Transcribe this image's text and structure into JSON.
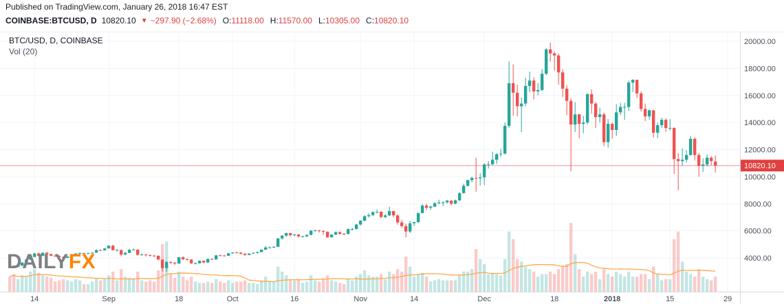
{
  "header": {
    "published": "Published on TradingView.com, January 26, 2018 16:47 EST",
    "symbol": "COINBASE:BTCUSD, D",
    "last_price": "10820.10",
    "down_triangle": "▼",
    "change": "−297.90 (−2.68%)",
    "ohlc": [
      {
        "label": "O:",
        "value": "11118.00"
      },
      {
        "label": "H:",
        "value": "11570.00"
      },
      {
        "label": "L:",
        "value": "10305.00"
      },
      {
        "label": "C:",
        "value": "10820.10"
      }
    ]
  },
  "legend": {
    "line1": "BTC/USD, D, COINBASE",
    "line2": "Vol (20)"
  },
  "logo": {
    "part1": "DAILY",
    "part2": "FX"
  },
  "colors": {
    "up": "#26a69a",
    "down": "#ef5350",
    "vol_up": "rgba(38,166,154,0.28)",
    "vol_down": "rgba(239,83,80,0.30)",
    "ma_line": "#ffa23e",
    "price_line": "#e0403f",
    "accent_red": "#e0403f",
    "logo_gray": "#7d8084",
    "logo_orange": "#ff8300",
    "grid": "#f0f3fa",
    "axis_text": "#4a4f59"
  },
  "chart_data": {
    "type": "candlestick",
    "title": "BTC/USD, D, COINBASE",
    "indicator": "Vol (20)",
    "symbol": "COINBASE:BTCUSD",
    "interval": "D",
    "start_date": "2017-08-08",
    "end_date": "2018-01-26",
    "last_price": 10820.1,
    "last_price_label": "10820.10",
    "volume_ma_period": 20,
    "y_ticks": [
      {
        "value": 20000,
        "label": "20000.00"
      },
      {
        "value": 18000,
        "label": "18000.00"
      },
      {
        "value": 16000,
        "label": "16000.00"
      },
      {
        "value": 14000,
        "label": "14000.00"
      },
      {
        "value": 12000,
        "label": "12000.00"
      },
      {
        "value": 10000,
        "label": "10000.00"
      },
      {
        "value": 8000,
        "label": "8000.00"
      },
      {
        "value": 6000,
        "label": "6000.00"
      },
      {
        "value": 4000,
        "label": "4000.00"
      }
    ],
    "x_ticks": [
      {
        "index": 6,
        "label": "14"
      },
      {
        "index": 24,
        "label": "Sep"
      },
      {
        "index": 41,
        "label": "18"
      },
      {
        "index": 54,
        "label": "Oct"
      },
      {
        "index": 69,
        "label": "16"
      },
      {
        "index": 85,
        "label": "Nov"
      },
      {
        "index": 98,
        "label": "14"
      },
      {
        "index": 115,
        "label": "Dec"
      },
      {
        "index": 132,
        "label": "18"
      },
      {
        "index": 146,
        "label": "2018",
        "bold": true
      },
      {
        "index": 160,
        "label": "15"
      },
      {
        "index": 174,
        "label": "29"
      }
    ],
    "candles": [
      [
        3450,
        3480,
        3340,
        3430,
        12
      ],
      [
        3430,
        3450,
        3250,
        3340,
        14
      ],
      [
        3340,
        3460,
        3300,
        3430,
        10
      ],
      [
        3430,
        3700,
        3400,
        3650,
        13
      ],
      [
        3650,
        3920,
        3640,
        3880,
        12
      ],
      [
        3880,
        4150,
        3850,
        4070,
        16
      ],
      [
        4070,
        4370,
        4060,
        4330,
        18
      ],
      [
        4330,
        4420,
        4100,
        4160,
        15
      ],
      [
        4160,
        4420,
        4110,
        4380,
        13
      ],
      [
        4380,
        4450,
        4200,
        4280,
        12
      ],
      [
        4280,
        4320,
        4110,
        4160,
        11
      ],
      [
        4160,
        4210,
        4080,
        4150,
        8
      ],
      [
        4150,
        4190,
        4010,
        4070,
        9
      ],
      [
        4070,
        4110,
        3970,
        4000,
        10
      ],
      [
        4000,
        4150,
        3980,
        4100,
        9
      ],
      [
        4100,
        4180,
        4050,
        4140,
        8
      ],
      [
        4140,
        4360,
        4120,
        4320,
        10
      ],
      [
        4320,
        4400,
        4280,
        4360,
        9
      ],
      [
        4360,
        4390,
        4300,
        4345,
        6
      ],
      [
        4345,
        4400,
        4290,
        4345,
        6
      ],
      [
        4345,
        4420,
        4300,
        4390,
        8
      ],
      [
        4390,
        4620,
        4350,
        4580,
        11
      ],
      [
        4580,
        4630,
        4500,
        4565,
        9
      ],
      [
        4565,
        4750,
        4530,
        4700,
        10
      ],
      [
        4700,
        4940,
        4680,
        4900,
        13
      ],
      [
        4900,
        4980,
        4520,
        4575,
        16
      ],
      [
        4575,
        4650,
        4480,
        4585,
        9
      ],
      [
        4585,
        4600,
        4110,
        4250,
        18
      ],
      [
        4250,
        4440,
        4210,
        4375,
        12
      ],
      [
        4375,
        4650,
        4350,
        4600,
        11
      ],
      [
        4600,
        4700,
        4550,
        4615,
        10
      ],
      [
        4615,
        4630,
        4150,
        4230,
        16
      ],
      [
        4230,
        4330,
        4160,
        4250,
        9
      ],
      [
        4250,
        4290,
        4110,
        4200,
        8
      ],
      [
        4200,
        4260,
        4100,
        4170,
        9
      ],
      [
        4170,
        4230,
        4080,
        4160,
        8
      ],
      [
        4160,
        4180,
        3830,
        3880,
        17
      ],
      [
        3880,
        3890,
        3000,
        3250,
        38
      ],
      [
        3250,
        3750,
        2970,
        3700,
        40
      ],
      [
        3700,
        3760,
        3550,
        3640,
        14
      ],
      [
        3640,
        3700,
        3470,
        3580,
        11
      ],
      [
        3580,
        4070,
        3570,
        4050,
        16
      ],
      [
        4050,
        4120,
        3850,
        3900,
        12
      ],
      [
        3900,
        3980,
        3800,
        3880,
        9
      ],
      [
        3880,
        3900,
        3550,
        3600,
        12
      ],
      [
        3600,
        3680,
        3530,
        3600,
        8
      ],
      [
        3600,
        3810,
        3580,
        3790,
        7
      ],
      [
        3790,
        3810,
        3600,
        3660,
        7
      ],
      [
        3660,
        3950,
        3640,
        3930,
        8
      ],
      [
        3930,
        3970,
        3830,
        3890,
        7
      ],
      [
        3890,
        4210,
        3870,
        4190,
        10
      ],
      [
        4190,
        4250,
        4120,
        4180,
        8
      ],
      [
        4180,
        4220,
        4100,
        4160,
        7
      ],
      [
        4160,
        4360,
        4140,
        4340,
        9
      ],
      [
        4340,
        4420,
        4310,
        4400,
        7
      ],
      [
        4400,
        4470,
        4350,
        4390,
        8
      ],
      [
        4390,
        4420,
        4250,
        4310,
        8
      ],
      [
        4310,
        4350,
        4160,
        4220,
        9
      ],
      [
        4220,
        4350,
        4200,
        4320,
        7
      ],
      [
        4320,
        4420,
        4290,
        4370,
        7
      ],
      [
        4370,
        4480,
        4320,
        4430,
        6
      ],
      [
        4430,
        4640,
        4410,
        4610,
        9
      ],
      [
        4610,
        4880,
        4580,
        4770,
        12
      ],
      [
        4770,
        4850,
        4700,
        4780,
        8
      ],
      [
        4780,
        4870,
        4720,
        4820,
        8
      ],
      [
        4820,
        5470,
        4810,
        5440,
        20
      ],
      [
        5440,
        5700,
        5350,
        5640,
        16
      ],
      [
        5640,
        5860,
        5560,
        5830,
        13
      ],
      [
        5830,
        5850,
        5580,
        5680,
        10
      ],
      [
        5680,
        5790,
        5600,
        5730,
        9
      ],
      [
        5730,
        5750,
        5480,
        5590,
        10
      ],
      [
        5590,
        5650,
        5500,
        5590,
        7
      ],
      [
        5590,
        5740,
        5550,
        5700,
        8
      ],
      [
        5700,
        6060,
        5680,
        6010,
        13
      ],
      [
        6010,
        6100,
        5940,
        6030,
        9
      ],
      [
        6030,
        6070,
        5870,
        5990,
        8
      ],
      [
        5990,
        6030,
        5700,
        5930,
        10
      ],
      [
        5930,
        5960,
        5470,
        5530,
        13
      ],
      [
        5530,
        5760,
        5500,
        5720,
        9
      ],
      [
        5720,
        5960,
        5690,
        5900,
        8
      ],
      [
        5900,
        5940,
        5710,
        5780,
        7
      ],
      [
        5780,
        5830,
        5700,
        5770,
        6
      ],
      [
        5770,
        6170,
        5740,
        6130,
        10
      ],
      [
        6130,
        6230,
        6030,
        6130,
        9
      ],
      [
        6130,
        6500,
        6100,
        6470,
        12
      ],
      [
        6470,
        6780,
        6380,
        6750,
        14
      ],
      [
        6750,
        7150,
        6700,
        7080,
        17
      ],
      [
        7080,
        7290,
        6980,
        7160,
        13
      ],
      [
        7160,
        7460,
        7100,
        7380,
        12
      ],
      [
        7380,
        7580,
        7280,
        7400,
        12
      ],
      [
        7400,
        7450,
        6930,
        7020,
        14
      ],
      [
        7020,
        7220,
        6950,
        7140,
        10
      ],
      [
        7140,
        7780,
        7080,
        7460,
        16
      ],
      [
        7460,
        7470,
        7000,
        7140,
        14
      ],
      [
        7140,
        7210,
        6450,
        6620,
        18
      ],
      [
        6620,
        6810,
        6220,
        6350,
        16
      ],
      [
        6350,
        6540,
        5510,
        5950,
        28
      ],
      [
        5950,
        6740,
        5830,
        6560,
        20
      ],
      [
        6560,
        6680,
        6360,
        6640,
        12
      ],
      [
        6640,
        7340,
        6600,
        7315,
        14
      ],
      [
        7315,
        7980,
        7280,
        7870,
        15
      ],
      [
        7870,
        8000,
        7530,
        7700,
        12
      ],
      [
        7700,
        7860,
        7550,
        7790,
        8
      ],
      [
        7790,
        8110,
        7750,
        8040,
        9
      ],
      [
        8040,
        8300,
        7960,
        8100,
        10
      ],
      [
        8100,
        8180,
        7820,
        8100,
        9
      ],
      [
        8100,
        8290,
        8020,
        8230,
        9
      ],
      [
        8230,
        8270,
        7870,
        8010,
        9
      ],
      [
        8010,
        8310,
        7950,
        8250,
        9
      ],
      [
        8250,
        8850,
        8200,
        8790,
        13
      ],
      [
        8790,
        9480,
        8750,
        9330,
        16
      ],
      [
        9330,
        9790,
        9270,
        9740,
        16
      ],
      [
        9740,
        10000,
        9590,
        9910,
        18
      ],
      [
        9910,
        11400,
        8890,
        9880,
        34
      ],
      [
        9880,
        10250,
        9350,
        9950,
        26
      ],
      [
        9950,
        11000,
        9380,
        10900,
        22
      ],
      [
        10900,
        11150,
        10600,
        10920,
        14
      ],
      [
        10920,
        11850,
        10850,
        11250,
        15
      ],
      [
        11250,
        11750,
        10950,
        11660,
        14
      ],
      [
        11660,
        12050,
        11450,
        11700,
        13
      ],
      [
        11700,
        14000,
        11650,
        13750,
        26
      ],
      [
        13750,
        18500,
        13600,
        16900,
        48
      ],
      [
        16900,
        18300,
        14500,
        16200,
        42
      ],
      [
        16200,
        16800,
        14450,
        15200,
        26
      ],
      [
        15200,
        15850,
        13300,
        15400,
        24
      ],
      [
        15400,
        17300,
        15200,
        16700,
        20
      ],
      [
        16700,
        17750,
        16250,
        17100,
        18
      ],
      [
        17100,
        17350,
        15700,
        16300,
        16
      ],
      [
        16300,
        16900,
        16000,
        16400,
        12
      ],
      [
        16400,
        17950,
        16300,
        17600,
        14
      ],
      [
        17600,
        19500,
        17500,
        19400,
        14
      ],
      [
        19400,
        19900,
        18500,
        19100,
        16
      ],
      [
        19100,
        19250,
        17830,
        18950,
        14
      ],
      [
        18950,
        19100,
        16800,
        17700,
        18
      ],
      [
        17700,
        17930,
        15900,
        16500,
        20
      ],
      [
        16500,
        16750,
        14550,
        15600,
        22
      ],
      [
        15600,
        15780,
        10400,
        13850,
        55
      ],
      [
        13850,
        15500,
        13300,
        14600,
        30
      ],
      [
        14600,
        14650,
        12830,
        13900,
        18
      ],
      [
        13900,
        14500,
        13200,
        14000,
        12
      ],
      [
        14000,
        16150,
        13860,
        16100,
        16
      ],
      [
        16100,
        16450,
        14650,
        15400,
        14
      ],
      [
        15400,
        15500,
        13600,
        14400,
        16
      ],
      [
        14400,
        15100,
        14000,
        14600,
        10
      ],
      [
        14600,
        14750,
        12250,
        12550,
        18
      ],
      [
        12550,
        14250,
        12150,
        13900,
        14
      ],
      [
        13900,
        14000,
        12800,
        13450,
        12
      ],
      [
        13450,
        15350,
        13000,
        14750,
        16
      ],
      [
        14750,
        15450,
        14550,
        15150,
        14
      ],
      [
        15150,
        15450,
        14200,
        15150,
        12
      ],
      [
        15150,
        17100,
        14850,
        16950,
        16
      ],
      [
        16950,
        17200,
        16250,
        17150,
        12
      ],
      [
        17150,
        17170,
        15800,
        16150,
        12
      ],
      [
        16150,
        16300,
        14800,
        15000,
        14
      ],
      [
        15000,
        15400,
        14100,
        14450,
        14
      ],
      [
        14450,
        14980,
        14200,
        14900,
        10
      ],
      [
        14900,
        14920,
        12900,
        13250,
        20
      ],
      [
        13250,
        14000,
        12850,
        13800,
        14
      ],
      [
        13800,
        14350,
        13600,
        14200,
        9
      ],
      [
        14200,
        14300,
        13300,
        13600,
        10
      ],
      [
        13600,
        14250,
        13400,
        13600,
        10
      ],
      [
        13600,
        13650,
        10200,
        11300,
        42
      ],
      [
        11300,
        11750,
        9000,
        11150,
        48
      ],
      [
        11150,
        12100,
        10800,
        11250,
        24
      ],
      [
        11250,
        11950,
        11050,
        11600,
        16
      ],
      [
        11600,
        13000,
        11550,
        12800,
        14
      ],
      [
        12800,
        12900,
        11200,
        11600,
        12
      ],
      [
        11600,
        11750,
        10000,
        10800,
        18
      ],
      [
        10800,
        11350,
        10350,
        10900,
        12
      ],
      [
        10900,
        11650,
        10750,
        11400,
        10
      ],
      [
        11400,
        11500,
        10850,
        11150,
        9
      ],
      [
        11118,
        11570,
        10305,
        10820.1,
        12
      ]
    ]
  }
}
